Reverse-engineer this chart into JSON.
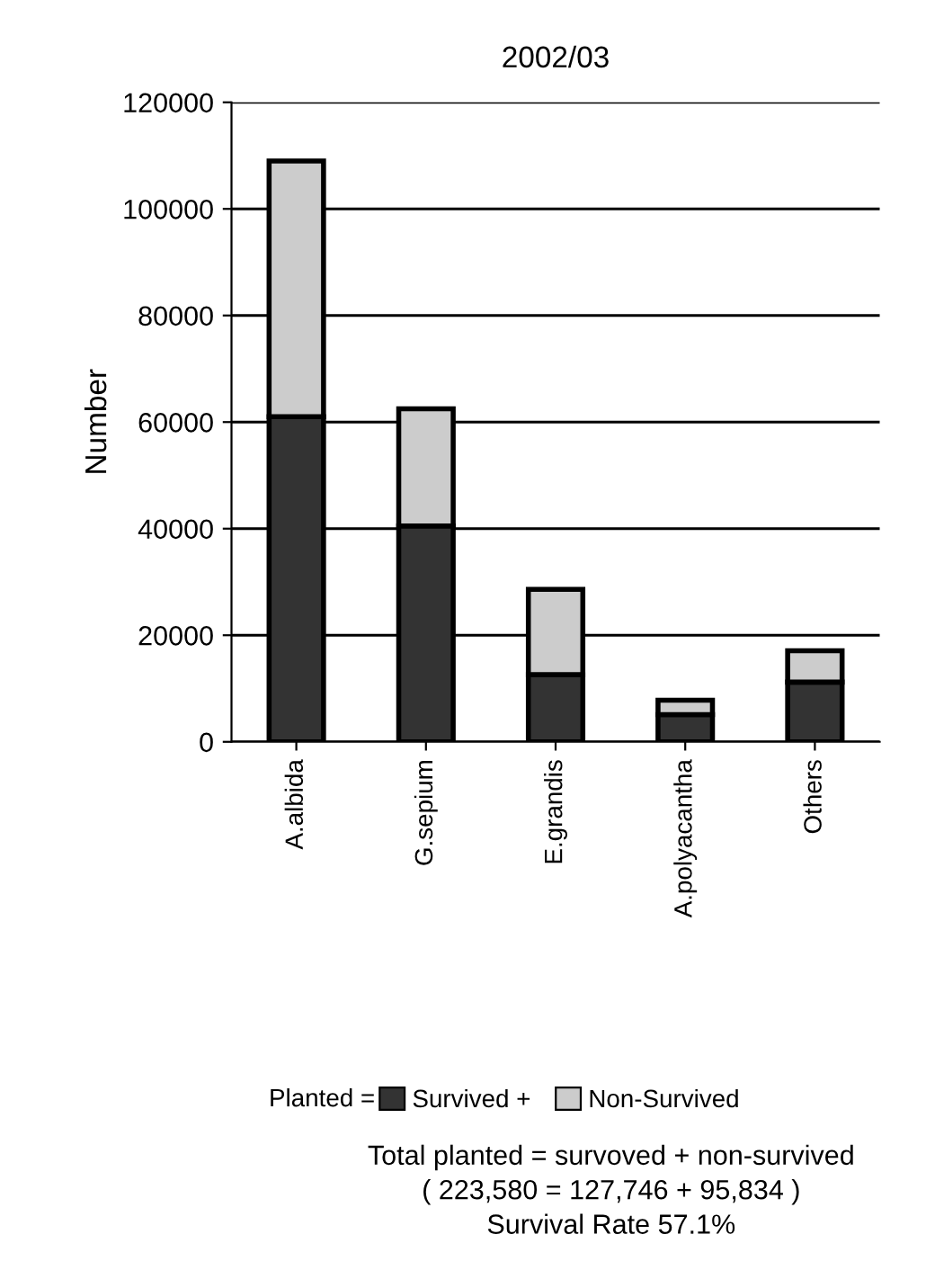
{
  "chart_data": {
    "type": "bar",
    "title": "2002/03",
    "ylabel": "Number",
    "categories": [
      "A.albida",
      "G.sepium",
      "E.grandis",
      "A.polyacantha",
      "Others"
    ],
    "series": [
      {
        "name": "Survived +",
        "color": "#333333",
        "values": [
          61000,
          40500,
          12600,
          5100,
          11200
        ]
      },
      {
        "name": "Non-Survived",
        "color": "#cccccc",
        "values": [
          48000,
          22000,
          16000,
          2700,
          5900
        ]
      }
    ],
    "stacked": true,
    "ylim": [
      0,
      120000
    ],
    "yticks": [
      0,
      20000,
      40000,
      60000,
      80000,
      100000,
      120000
    ],
    "grid": "y",
    "legend": "bottom",
    "legend_title": "Planted =",
    "annotations": [
      "Total planted = survoved + non-survived",
      "( 223,580 = 127,746 + 95,834 )",
      "Survival Rate 57.1%"
    ]
  }
}
